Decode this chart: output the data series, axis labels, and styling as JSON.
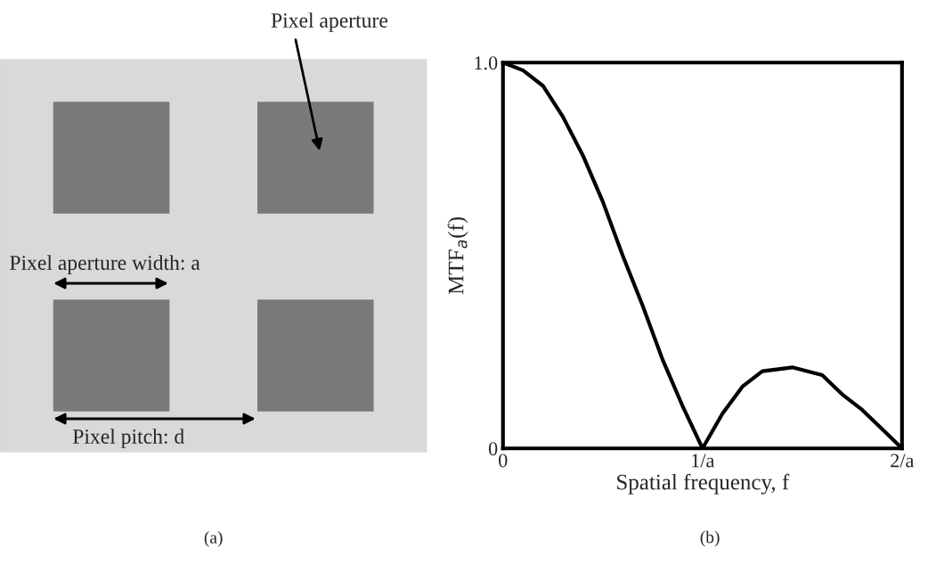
{
  "chart_data": [
    {
      "type": "other",
      "annotations": [
        "Pixel aperture",
        "Pixel aperture width: a",
        "Pixel pitch: d",
        "(a)"
      ]
    },
    {
      "type": "line",
      "xlabel": "Spatial frequency, f",
      "ylabel": "MTF$_{a}$(f)",
      "color": "#000000",
      "x": [
        0,
        0.1,
        0.2,
        0.3,
        0.4,
        0.5,
        0.6,
        0.7,
        0.8,
        0.9,
        1.0,
        1.1,
        1.2,
        1.3,
        1.45,
        1.6,
        1.7,
        1.8,
        1.9,
        2.0
      ],
      "values": [
        1,
        0.98,
        0.94,
        0.86,
        0.76,
        0.64,
        0.5,
        0.37,
        0.23,
        0.11,
        0,
        0.09,
        0.16,
        0.2,
        0.21,
        0.19,
        0.14,
        0.1,
        0.05,
        0
      ],
      "xlim": [
        0,
        2
      ],
      "ylim": [
        0,
        1
      ],
      "xticks": [
        0,
        {
          "value": 1,
          "label": "1/a"
        },
        {
          "value": 2,
          "label": "2/a"
        }
      ],
      "yticks": [
        0,
        {
          "value": 1,
          "label": "1.0"
        }
      ],
      "annotations": [
        "(b)"
      ]
    }
  ]
}
